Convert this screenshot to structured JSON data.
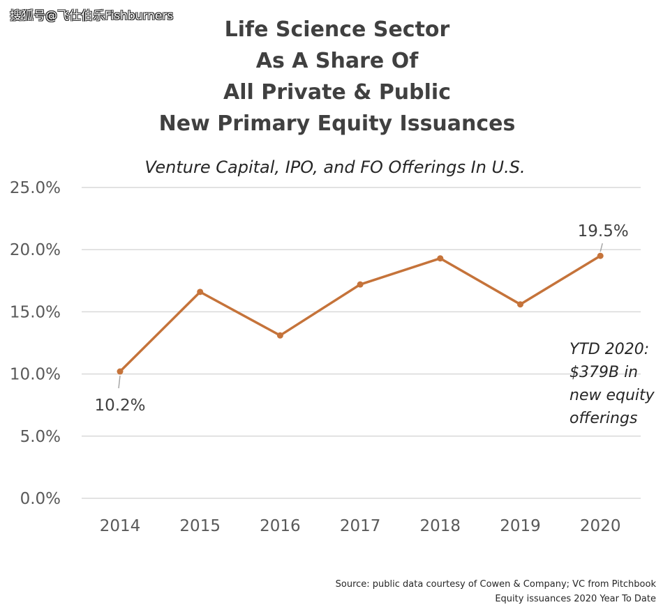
{
  "watermark": "搜狐号@飞仕伯乐Fishburners",
  "chart_data": {
    "type": "line",
    "title_lines": [
      "Life Science Sector",
      "As A Share Of",
      "All Private & Public",
      "New Primary Equity Issuances"
    ],
    "subtitle": "Venture Capital, IPO, and FO Offerings In U.S.",
    "categories": [
      "2014",
      "2015",
      "2016",
      "2017",
      "2018",
      "2019",
      "2020"
    ],
    "series": [
      {
        "values": [
          10.2,
          16.6,
          13.1,
          17.2,
          19.3,
          15.6,
          19.5
        ],
        "color": "#C5733A"
      }
    ],
    "y_ticks": [
      "0.0%",
      "5.0%",
      "10.0%",
      "15.0%",
      "20.0%",
      "25.0%"
    ],
    "ylim": [
      0,
      25
    ],
    "grid": true,
    "data_labels": [
      {
        "category": "2014",
        "text": "10.2%"
      },
      {
        "category": "2020",
        "text": "19.5%"
      }
    ],
    "annotation_lines": [
      "YTD 2020:",
      "$379B in",
      "new equity",
      "offerings"
    ],
    "source_lines": [
      "Source: public data courtesy of Cowen & Company; VC from Pitchbook",
      "Equity issuances 2020 Year To Date"
    ],
    "colors": {
      "line": "#C5733A",
      "grid": "#D9D9D9",
      "title": "#404040"
    }
  }
}
